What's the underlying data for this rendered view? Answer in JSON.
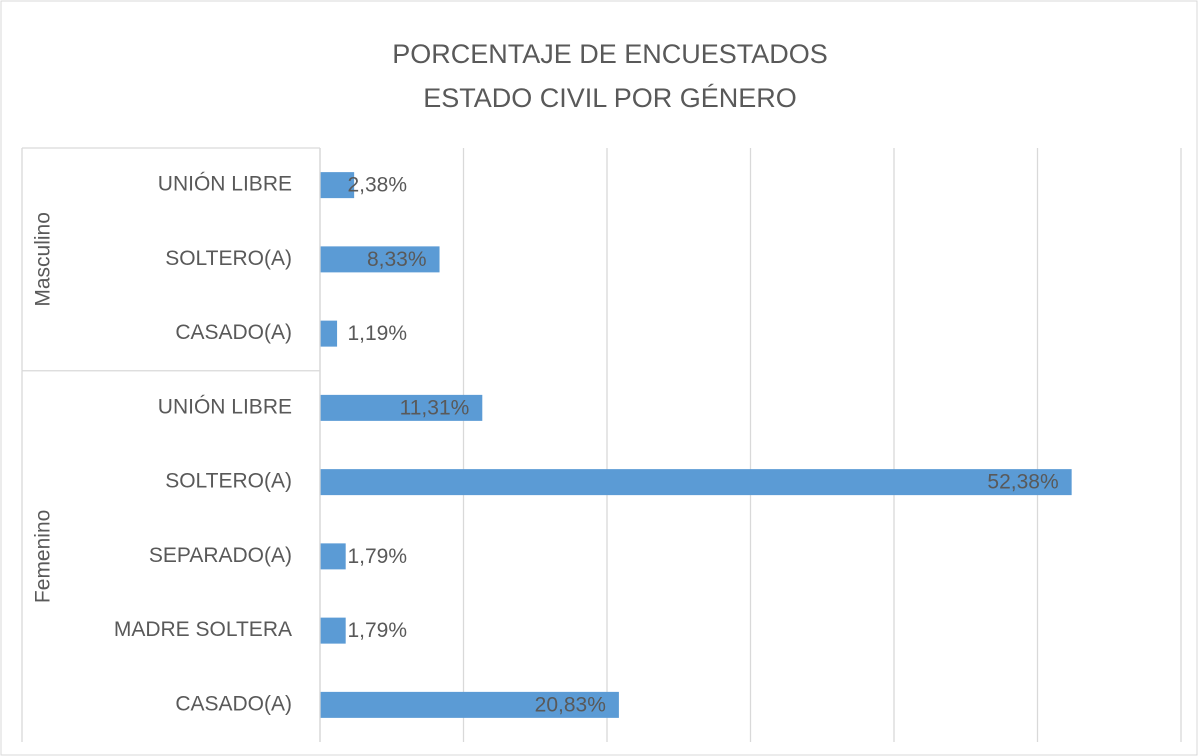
{
  "chart_data": {
    "type": "bar",
    "orientation": "horizontal",
    "title": [
      "PORCENTAJE DE ENCUESTADOS",
      "ESTADO CIVIL POR GÉNERO"
    ],
    "color": "#5b9bd5",
    "groups": [
      {
        "name": "Masculino",
        "categories": [
          "UNIÓN LIBRE",
          "SOLTERO(A)",
          "CASADO(A)"
        ],
        "values": [
          2.38,
          8.33,
          1.19
        ],
        "value_labels": [
          "2,38%",
          "8,33%",
          "1,19%"
        ]
      },
      {
        "name": "Femenino",
        "categories": [
          "UNIÓN LIBRE",
          "SOLTERO(A)",
          "SEPARADO(A)",
          "MADRE SOLTERA",
          "CASADO(A)"
        ],
        "values": [
          11.31,
          52.38,
          1.79,
          1.79,
          20.83
        ],
        "value_labels": [
          "11,31%",
          "52,38%",
          "1,79%",
          "1,79%",
          "20,83%"
        ]
      }
    ],
    "xlim": [
      0,
      60
    ],
    "xticks": [
      0,
      10,
      20,
      30,
      40,
      50,
      60
    ],
    "grid": true
  }
}
